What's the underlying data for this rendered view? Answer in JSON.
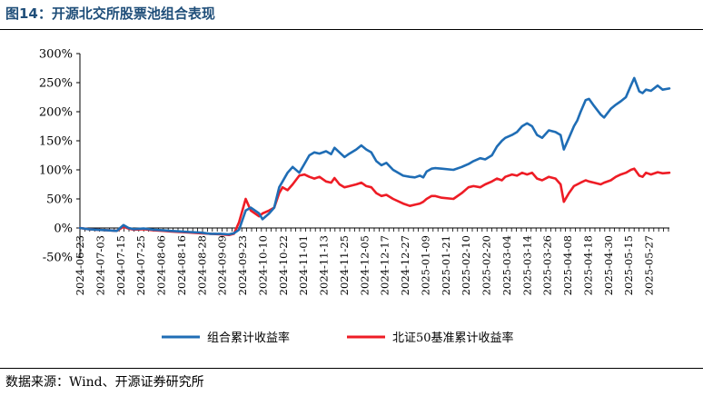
{
  "header": {
    "title": "图14：开源北交所股票池组合表现"
  },
  "footer": {
    "source": "数据来源：Wind、开源证券研究所"
  },
  "chart_data": {
    "type": "line",
    "title": "开源北交所股票池组合表现",
    "xlabel": "",
    "ylabel": "",
    "ylim": [
      -50,
      300
    ],
    "y_ticks": [
      -50,
      0,
      50,
      100,
      150,
      200,
      250,
      300
    ],
    "y_tick_labels": [
      "-50%",
      "0%",
      "50%",
      "100%",
      "150%",
      "200%",
      "250%",
      "300%"
    ],
    "x_range": [
      "2024-06-23",
      "2025-06-10"
    ],
    "x_tick_labels": [
      "2024-06-23",
      "2024-07-03",
      "2024-07-15",
      "2024-07-25",
      "2024-08-06",
      "2024-08-16",
      "2024-08-28",
      "2024-09-09",
      "2024-09-23",
      "2024-10-10",
      "2024-10-22",
      "2024-11-01",
      "2024-11-13",
      "2024-11-25",
      "2024-12-05",
      "2024-12-17",
      "2024-12-27",
      "2025-01-09",
      "2025-01-21",
      "2025-02-10",
      "2025-02-20",
      "2025-03-04",
      "2025-03-14",
      "2025-03-26",
      "2025-04-08",
      "2025-04-18",
      "2025-04-30",
      "2025-05-15",
      "2025-05-27"
    ],
    "legend": {
      "position": "bottom"
    },
    "series": [
      {
        "name": "组合累计收益率",
        "color": "#1f6db5",
        "points": [
          [
            "2024-06-23",
            0
          ],
          [
            "2024-06-28",
            -2
          ],
          [
            "2024-07-03",
            -3
          ],
          [
            "2024-07-10",
            -4
          ],
          [
            "2024-07-15",
            -5
          ],
          [
            "2024-07-19",
            5
          ],
          [
            "2024-07-22",
            0
          ],
          [
            "2024-07-25",
            -2
          ],
          [
            "2024-07-31",
            -1
          ],
          [
            "2024-08-06",
            -3
          ],
          [
            "2024-08-12",
            -4
          ],
          [
            "2024-08-16",
            -5
          ],
          [
            "2024-08-22",
            -6
          ],
          [
            "2024-08-28",
            -7
          ],
          [
            "2024-09-03",
            -8
          ],
          [
            "2024-09-09",
            -10
          ],
          [
            "2024-09-15",
            -10
          ],
          [
            "2024-09-20",
            -11
          ],
          [
            "2024-09-23",
            -9
          ],
          [
            "2024-09-26",
            -3
          ],
          [
            "2024-09-30",
            30
          ],
          [
            "2024-10-03",
            35
          ],
          [
            "2024-10-08",
            25
          ],
          [
            "2024-10-10",
            15
          ],
          [
            "2024-10-14",
            25
          ],
          [
            "2024-10-17",
            35
          ],
          [
            "2024-10-20",
            70
          ],
          [
            "2024-10-22",
            80
          ],
          [
            "2024-10-25",
            95
          ],
          [
            "2024-10-28",
            105
          ],
          [
            "2024-11-01",
            95
          ],
          [
            "2024-11-04",
            110
          ],
          [
            "2024-11-07",
            125
          ],
          [
            "2024-11-10",
            130
          ],
          [
            "2024-11-13",
            128
          ],
          [
            "2024-11-17",
            132
          ],
          [
            "2024-11-20",
            127
          ],
          [
            "2024-11-22",
            138
          ],
          [
            "2024-11-25",
            130
          ],
          [
            "2024-11-28",
            122
          ],
          [
            "2024-12-01",
            128
          ],
          [
            "2024-12-05",
            135
          ],
          [
            "2024-12-08",
            142
          ],
          [
            "2024-12-11",
            135
          ],
          [
            "2024-12-14",
            130
          ],
          [
            "2024-12-17",
            115
          ],
          [
            "2024-12-20",
            108
          ],
          [
            "2024-12-23",
            112
          ],
          [
            "2024-12-27",
            100
          ],
          [
            "2025-01-02",
            90
          ],
          [
            "2025-01-06",
            88
          ],
          [
            "2025-01-09",
            87
          ],
          [
            "2025-01-12",
            90
          ],
          [
            "2025-01-14",
            87
          ],
          [
            "2025-01-16",
            97
          ],
          [
            "2025-01-19",
            102
          ],
          [
            "2025-01-21",
            103
          ],
          [
            "2025-01-25",
            102
          ],
          [
            "2025-02-01",
            100
          ],
          [
            "2025-02-06",
            105
          ],
          [
            "2025-02-10",
            110
          ],
          [
            "2025-02-13",
            115
          ],
          [
            "2025-02-17",
            120
          ],
          [
            "2025-02-20",
            118
          ],
          [
            "2025-02-24",
            125
          ],
          [
            "2025-02-27",
            140
          ],
          [
            "2025-03-02",
            150
          ],
          [
            "2025-03-04",
            155
          ],
          [
            "2025-03-08",
            160
          ],
          [
            "2025-03-11",
            165
          ],
          [
            "2025-03-14",
            175
          ],
          [
            "2025-03-17",
            180
          ],
          [
            "2025-03-20",
            175
          ],
          [
            "2025-03-23",
            160
          ],
          [
            "2025-03-26",
            155
          ],
          [
            "2025-03-30",
            168
          ],
          [
            "2025-04-03",
            165
          ],
          [
            "2025-04-06",
            160
          ],
          [
            "2025-04-08",
            135
          ],
          [
            "2025-04-11",
            155
          ],
          [
            "2025-04-14",
            175
          ],
          [
            "2025-04-16",
            185
          ],
          [
            "2025-04-18",
            200
          ],
          [
            "2025-04-21",
            220
          ],
          [
            "2025-04-23",
            222
          ],
          [
            "2025-04-26",
            210
          ],
          [
            "2025-04-30",
            195
          ],
          [
            "2025-05-02",
            190
          ],
          [
            "2025-05-06",
            205
          ],
          [
            "2025-05-09",
            212
          ],
          [
            "2025-05-12",
            218
          ],
          [
            "2025-05-15",
            225
          ],
          [
            "2025-05-18",
            245
          ],
          [
            "2025-05-20",
            258
          ],
          [
            "2025-05-23",
            235
          ],
          [
            "2025-05-25",
            232
          ],
          [
            "2025-05-27",
            238
          ],
          [
            "2025-05-30",
            236
          ],
          [
            "2025-06-03",
            245
          ],
          [
            "2025-06-06",
            238
          ],
          [
            "2025-06-10",
            240
          ]
        ]
      },
      {
        "name": "北证50基准累计收益率",
        "color": "#ee1c25",
        "points": [
          [
            "2024-06-23",
            0
          ],
          [
            "2024-06-28",
            -2
          ],
          [
            "2024-07-03",
            -3
          ],
          [
            "2024-07-10",
            -4
          ],
          [
            "2024-07-15",
            -5
          ],
          [
            "2024-07-19",
            2
          ],
          [
            "2024-07-22",
            -1
          ],
          [
            "2024-07-25",
            -3
          ],
          [
            "2024-07-31",
            -2
          ],
          [
            "2024-08-06",
            -4
          ],
          [
            "2024-08-12",
            -5
          ],
          [
            "2024-08-16",
            -6
          ],
          [
            "2024-08-22",
            -7
          ],
          [
            "2024-08-28",
            -8
          ],
          [
            "2024-09-03",
            -9
          ],
          [
            "2024-09-09",
            -10
          ],
          [
            "2024-09-15",
            -11
          ],
          [
            "2024-09-20",
            -12
          ],
          [
            "2024-09-23",
            -10
          ],
          [
            "2024-09-26",
            10
          ],
          [
            "2024-09-30",
            50
          ],
          [
            "2024-10-03",
            30
          ],
          [
            "2024-10-08",
            20
          ],
          [
            "2024-10-10",
            25
          ],
          [
            "2024-10-14",
            30
          ],
          [
            "2024-10-17",
            35
          ],
          [
            "2024-10-20",
            60
          ],
          [
            "2024-10-22",
            70
          ],
          [
            "2024-10-25",
            65
          ],
          [
            "2024-10-28",
            75
          ],
          [
            "2024-11-01",
            90
          ],
          [
            "2024-11-04",
            92
          ],
          [
            "2024-11-07",
            88
          ],
          [
            "2024-11-10",
            85
          ],
          [
            "2024-11-13",
            88
          ],
          [
            "2024-11-17",
            80
          ],
          [
            "2024-11-20",
            78
          ],
          [
            "2024-11-22",
            86
          ],
          [
            "2024-11-25",
            75
          ],
          [
            "2024-11-28",
            70
          ],
          [
            "2024-12-01",
            72
          ],
          [
            "2024-12-05",
            75
          ],
          [
            "2024-12-08",
            78
          ],
          [
            "2024-12-11",
            72
          ],
          [
            "2024-12-14",
            70
          ],
          [
            "2024-12-17",
            60
          ],
          [
            "2024-12-20",
            55
          ],
          [
            "2024-12-23",
            57
          ],
          [
            "2024-12-27",
            50
          ],
          [
            "2025-01-02",
            42
          ],
          [
            "2025-01-06",
            38
          ],
          [
            "2025-01-09",
            40
          ],
          [
            "2025-01-12",
            42
          ],
          [
            "2025-01-14",
            45
          ],
          [
            "2025-01-16",
            50
          ],
          [
            "2025-01-19",
            55
          ],
          [
            "2025-01-21",
            55
          ],
          [
            "2025-01-25",
            52
          ],
          [
            "2025-02-01",
            50
          ],
          [
            "2025-02-06",
            60
          ],
          [
            "2025-02-10",
            70
          ],
          [
            "2025-02-13",
            72
          ],
          [
            "2025-02-17",
            70
          ],
          [
            "2025-02-20",
            75
          ],
          [
            "2025-02-24",
            80
          ],
          [
            "2025-02-27",
            85
          ],
          [
            "2025-03-02",
            82
          ],
          [
            "2025-03-04",
            88
          ],
          [
            "2025-03-08",
            92
          ],
          [
            "2025-03-11",
            90
          ],
          [
            "2025-03-14",
            95
          ],
          [
            "2025-03-17",
            92
          ],
          [
            "2025-03-20",
            95
          ],
          [
            "2025-03-23",
            85
          ],
          [
            "2025-03-26",
            82
          ],
          [
            "2025-03-30",
            88
          ],
          [
            "2025-04-03",
            85
          ],
          [
            "2025-04-06",
            75
          ],
          [
            "2025-04-08",
            45
          ],
          [
            "2025-04-11",
            60
          ],
          [
            "2025-04-14",
            72
          ],
          [
            "2025-04-16",
            75
          ],
          [
            "2025-04-18",
            78
          ],
          [
            "2025-04-21",
            82
          ],
          [
            "2025-04-23",
            80
          ],
          [
            "2025-04-26",
            78
          ],
          [
            "2025-04-30",
            75
          ],
          [
            "2025-05-02",
            78
          ],
          [
            "2025-05-06",
            82
          ],
          [
            "2025-05-09",
            88
          ],
          [
            "2025-05-12",
            92
          ],
          [
            "2025-05-15",
            95
          ],
          [
            "2025-05-18",
            100
          ],
          [
            "2025-05-20",
            102
          ],
          [
            "2025-05-23",
            90
          ],
          [
            "2025-05-25",
            88
          ],
          [
            "2025-05-27",
            95
          ],
          [
            "2025-05-30",
            92
          ],
          [
            "2025-06-03",
            96
          ],
          [
            "2025-06-06",
            94
          ],
          [
            "2025-06-10",
            95
          ]
        ]
      }
    ]
  }
}
